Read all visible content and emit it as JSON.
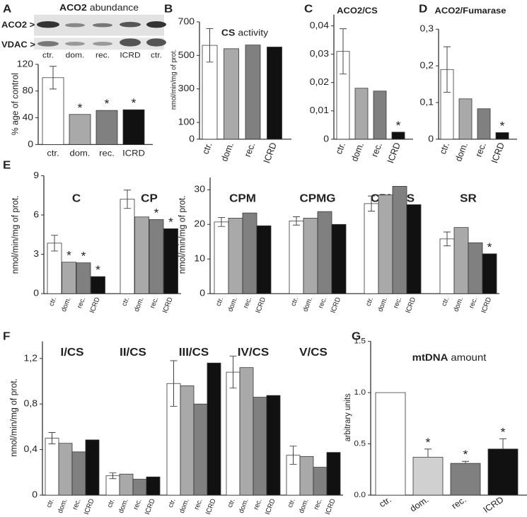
{
  "chart_data": [
    {
      "type": "bar",
      "label": "A",
      "title": {
        "bold": "ACO2",
        "rest": "abundance"
      },
      "blot_rows": [
        "ACO2 >",
        "VDAC >"
      ],
      "blot_lanes": [
        "ctr.",
        "dom.",
        "rec.",
        "ICRD",
        "ctr."
      ],
      "ylabel": "% age of control",
      "categories": [
        "ctr.",
        "dom.",
        "rec.",
        "ICRD"
      ],
      "colors": [
        "#ffffff",
        "#a9a9a9",
        "#808080",
        "#111111"
      ],
      "groups": [
        {
          "values": [
            100,
            45,
            51,
            52
          ],
          "errors": [
            17,
            null,
            null,
            null
          ],
          "markers": [
            null,
            "*",
            "*",
            "*"
          ]
        }
      ],
      "ylim": [
        0,
        120
      ],
      "yticks": [
        0,
        40,
        80,
        120
      ]
    },
    {
      "type": "bar",
      "label": "B",
      "title": {
        "bold": "CS",
        "rest": "activity"
      },
      "ylabel": "nmol/min/mg of prot.",
      "categories": [
        "ctr.",
        "dom.",
        "rec.",
        "ICRD"
      ],
      "colors": [
        "#ffffff",
        "#a9a9a9",
        "#808080",
        "#111111"
      ],
      "groups": [
        {
          "values": [
            560,
            540,
            562,
            550
          ],
          "errors": [
            100,
            null,
            null,
            null
          ]
        }
      ],
      "ylim": [
        0,
        700
      ],
      "yticks": [
        0,
        100,
        300,
        500,
        700
      ]
    },
    {
      "type": "bar",
      "label": "C",
      "title": {
        "bold": "ACO2/CS"
      },
      "categories": [
        "ctr.",
        "dom.",
        "rec.",
        "ICRD"
      ],
      "colors": [
        "#ffffff",
        "#a9a9a9",
        "#808080",
        "#111111"
      ],
      "groups": [
        {
          "values": [
            0.031,
            0.018,
            0.017,
            0.0025
          ],
          "errors": [
            0.008,
            null,
            null,
            null
          ],
          "markers": [
            null,
            null,
            null,
            "*"
          ]
        }
      ],
      "ylim": [
        0,
        0.044
      ],
      "yticks": [
        0,
        {
          "value": 0.01,
          "label": "0,01"
        },
        {
          "value": 0.02,
          "label": "0,02"
        },
        {
          "value": 0.03,
          "label": "0,03"
        },
        {
          "value": 0.04,
          "label": "0,04"
        }
      ]
    },
    {
      "type": "bar",
      "label": "D",
      "title": {
        "bold": "ACO2/Fumarase"
      },
      "categories": [
        "ctr.",
        "dom.",
        "rec.",
        "ICRD"
      ],
      "colors": [
        "#ffffff",
        "#a9a9a9",
        "#808080",
        "#111111"
      ],
      "groups": [
        {
          "values": [
            0.19,
            0.11,
            0.083,
            0.018
          ],
          "errors": [
            0.062,
            null,
            null,
            null
          ],
          "markers": [
            null,
            null,
            null,
            "*"
          ]
        }
      ],
      "ylim": [
        0,
        0.3
      ],
      "yticks": [
        0,
        {
          "value": 0.1,
          "label": "0,1"
        },
        {
          "value": 0.2,
          "label": "0,2"
        },
        {
          "value": 0.3,
          "label": "0,3"
        }
      ]
    },
    {
      "type": "bar",
      "label": "E",
      "ylabel": "nmol/min/mg of prot.",
      "categories": [
        "ctr.",
        "dom.",
        "rec.",
        "ICRD"
      ],
      "colors": [
        "#ffffff",
        "#a9a9a9",
        "#808080",
        "#111111"
      ],
      "groups": [
        {
          "name": "C",
          "values": [
            3.85,
            2.4,
            2.35,
            1.3
          ],
          "errors": [
            0.6,
            null,
            null,
            null
          ],
          "markers": [
            null,
            "*",
            "*",
            "*"
          ]
        },
        {
          "name": "CP",
          "values": [
            7.2,
            5.85,
            5.65,
            4.95
          ],
          "errors": [
            0.7,
            null,
            null,
            null
          ],
          "markers": [
            null,
            null,
            "*",
            "*"
          ]
        }
      ],
      "ylim": [
        0,
        9
      ],
      "yticks": [
        0,
        3,
        6,
        9
      ]
    },
    {
      "type": "bar",
      "ylabel": "nmol/min/mg of prot.",
      "categories": [
        "ctr.",
        "dom.",
        "rec.",
        "ICRD"
      ],
      "colors": [
        "#ffffff",
        "#a9a9a9",
        "#808080",
        "#111111"
      ],
      "groups": [
        {
          "name": "CPM",
          "values": [
            20.7,
            21.8,
            23.3,
            19.6
          ],
          "errors": [
            1.3,
            null,
            null,
            null
          ]
        },
        {
          "name": "CPMG",
          "values": [
            21,
            21.8,
            23.7,
            20
          ],
          "errors": [
            1.2,
            null,
            null,
            null
          ]
        },
        {
          "name": "CPMGS",
          "values": [
            26,
            28.5,
            31,
            25.7
          ],
          "errors": [
            2.2,
            null,
            null,
            null
          ]
        },
        {
          "name": "SR",
          "values": [
            15.8,
            19.1,
            14.7,
            11.5
          ],
          "errors": [
            2,
            null,
            null,
            null
          ],
          "markers": [
            null,
            null,
            null,
            "*"
          ]
        }
      ],
      "ylim": [
        0,
        33.5
      ],
      "yticks": [
        0,
        10,
        20,
        30
      ]
    },
    {
      "type": "bar",
      "label": "F",
      "ylabel": "nmol/min/mg of prot.",
      "categories": [
        "ctr.",
        "dom.",
        "rec.",
        "ICRD"
      ],
      "colors": [
        "#ffffff",
        "#a9a9a9",
        "#808080",
        "#111111"
      ],
      "groups": [
        {
          "name": "I/CS",
          "values": [
            0.5,
            0.455,
            0.38,
            0.485
          ],
          "errors": [
            0.05,
            null,
            null,
            null
          ]
        },
        {
          "name": "II/CS",
          "values": [
            0.17,
            0.185,
            0.14,
            0.16
          ],
          "errors": [
            0.025,
            null,
            null,
            null
          ]
        },
        {
          "name": "III/CS",
          "values": [
            0.98,
            0.96,
            0.8,
            1.16
          ],
          "errors": [
            0.2,
            null,
            null,
            null
          ]
        },
        {
          "name": "IV/CS",
          "values": [
            1.08,
            1.12,
            0.86,
            0.875
          ],
          "errors": [
            0.14,
            null,
            null,
            null
          ]
        },
        {
          "name": "V/CS",
          "values": [
            0.35,
            0.34,
            0.245,
            0.375
          ],
          "errors": [
            0.08,
            null,
            null,
            null
          ]
        }
      ],
      "ylim": [
        0,
        1.35
      ],
      "yticks": [
        0,
        {
          "value": 0.4,
          "label": "0,4"
        },
        {
          "value": 0.8,
          "label": "0,8"
        },
        {
          "value": 1.2,
          "label": "1,2"
        }
      ]
    },
    {
      "type": "bar",
      "label": "G",
      "title": {
        "bold": "mtDNA",
        "rest": "amount"
      },
      "ylabel": "arbitrary units",
      "categories": [
        "ctr.",
        "dom.",
        "rec.",
        "ICRD"
      ],
      "colors": [
        "#ffffff",
        "#d0d0d0",
        "#808080",
        "#111111"
      ],
      "error_direction": "up",
      "groups": [
        {
          "values": [
            1.0,
            0.37,
            0.31,
            0.45
          ],
          "errors": [
            null,
            0.08,
            0.02,
            0.1
          ],
          "markers": [
            null,
            "*",
            "*",
            "*"
          ]
        }
      ],
      "ylim": [
        0,
        1.5
      ],
      "yticks": [
        {
          "value": 0,
          "label": "0.0"
        },
        {
          "value": 0.5,
          "label": "0.5"
        },
        {
          "value": 1.0,
          "label": "1.0"
        },
        {
          "value": 1.5,
          "label": "1.5"
        }
      ]
    }
  ]
}
